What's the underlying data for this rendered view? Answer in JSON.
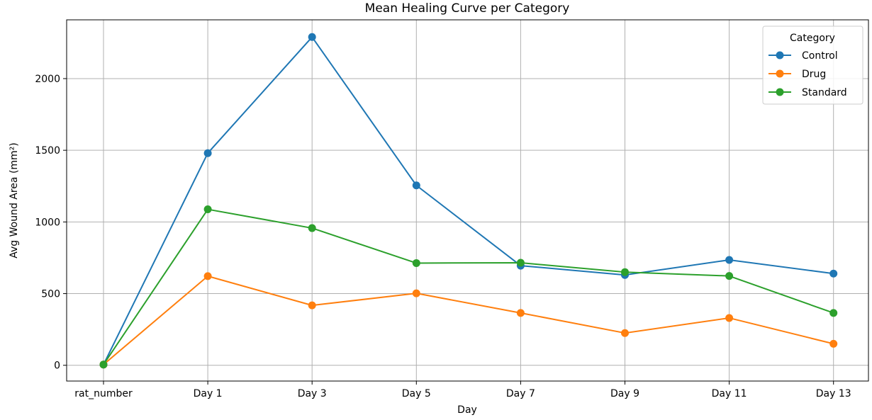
{
  "chart_data": {
    "type": "line",
    "title": "Mean Healing Curve per Category",
    "xlabel": "Day",
    "ylabel": "Avg Wound Area (mm²)",
    "categories": [
      "rat_number",
      "Day 1",
      "Day 3",
      "Day 5",
      "Day 7",
      "Day 9",
      "Day 11",
      "Day 13"
    ],
    "ylim": [
      -110,
      2410
    ],
    "yticks": [
      0,
      500,
      1000,
      1500,
      2000
    ],
    "grid": true,
    "legend": {
      "title": "Category",
      "placement": "top-right"
    },
    "series": [
      {
        "name": "Control",
        "color": "#1f77b4",
        "values": [
          5,
          1480,
          2290,
          1255,
          695,
          630,
          735,
          640
        ]
      },
      {
        "name": "Drug",
        "color": "#ff7f0e",
        "values": [
          5,
          622,
          418,
          502,
          365,
          225,
          330,
          150
        ]
      },
      {
        "name": "Standard",
        "color": "#2ca02c",
        "values": [
          5,
          1088,
          957,
          713,
          715,
          650,
          623,
          365
        ]
      }
    ]
  }
}
